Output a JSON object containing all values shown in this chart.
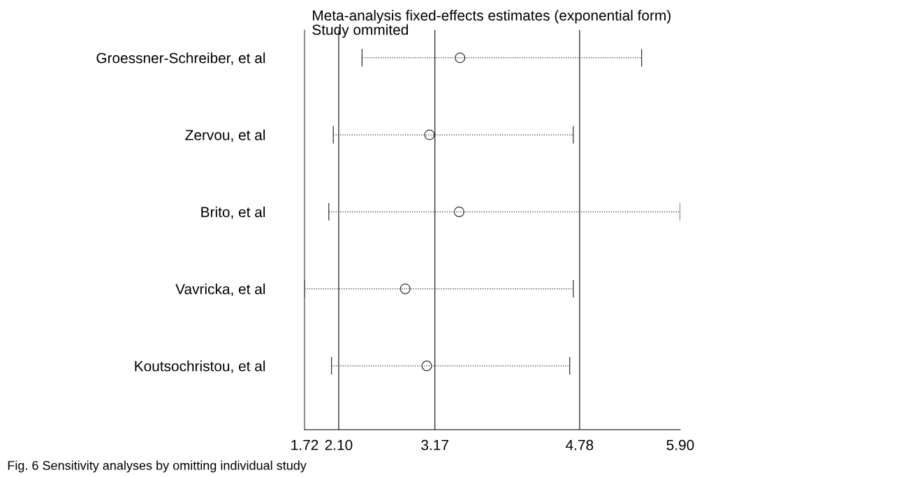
{
  "chart_data": {
    "type": "scatter",
    "orientation": "horizontal",
    "title": "Meta-analysis fixed-effects estimates (exponential form)",
    "subtitle": "Study ommited",
    "categories": [
      "Groessner-Schreiber, et al",
      "Zervou, et al",
      "Brito, et al",
      "Vavricka, et al",
      "Koutsochristou, et al"
    ],
    "values": [
      3.45,
      3.11,
      3.44,
      2.84,
      3.08
    ],
    "errors": [
      [
        2.36,
        5.47
      ],
      [
        2.04,
        4.71
      ],
      [
        1.99,
        5.9
      ],
      [
        1.72,
        4.71
      ],
      [
        2.02,
        4.67
      ]
    ],
    "color": "#333333",
    "marker": "circle",
    "line_style": "dotted",
    "xlim": [
      1.72,
      5.9
    ],
    "xticks": [
      1.72,
      {
        "value": 2.1,
        "label": "2.10"
      },
      {
        "value": 3.17,
        "label": "3.17"
      },
      4.78,
      {
        "value": 5.9,
        "label": "5.90"
      }
    ],
    "ref_lines": [
      {
        "axis": "x",
        "value": 2.1,
        "color": "#333333"
      },
      {
        "axis": "x",
        "value": 3.17,
        "color": "#333333"
      },
      {
        "axis": "x",
        "value": 4.78,
        "color": "#333333"
      }
    ],
    "grid": false,
    "legend": false,
    "annotations": [
      "Fig. 6 Sensitivity analyses by omitting individual study"
    ]
  }
}
